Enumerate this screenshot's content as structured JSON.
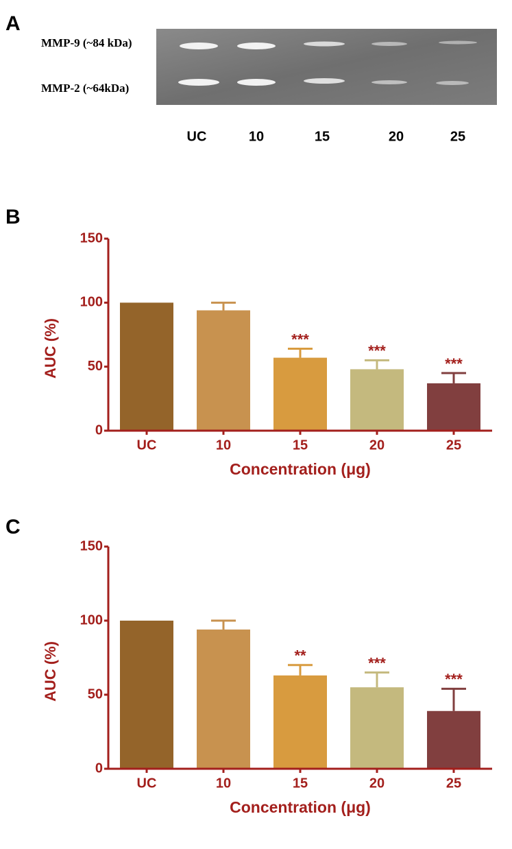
{
  "gel": {
    "panel": "A",
    "band_labels": [
      "MMP-9 (~84 kDa)",
      "MMP-2 (~64kDa)"
    ],
    "lanes": [
      "UC",
      "10",
      "15",
      "20",
      "25"
    ]
  },
  "chart_data": [
    {
      "type": "bar",
      "panel": "B",
      "y_label": "AUC (%)",
      "x_label": "Concentration (μg)",
      "categories": [
        "UC",
        "10",
        "15",
        "20",
        "25"
      ],
      "values": [
        100,
        94,
        57,
        48,
        37
      ],
      "errors": [
        null,
        6,
        7,
        7,
        8
      ],
      "annotations": [
        null,
        null,
        "***",
        "***",
        "***"
      ],
      "colors": [
        "#94642a",
        "#c8924f",
        "#d89b3f",
        "#c4b97e",
        "#813f3f"
      ],
      "axis_color": "#a31f1c",
      "ylim": [
        0,
        150
      ],
      "yticks": [
        0,
        50,
        100,
        150
      ],
      "grid": false
    },
    {
      "type": "bar",
      "panel": "C",
      "y_label": "AUC (%)",
      "x_label": "Concentration (μg)",
      "categories": [
        "UC",
        "10",
        "15",
        "20",
        "25"
      ],
      "values": [
        100,
        94,
        63,
        55,
        39
      ],
      "errors": [
        null,
        6,
        7,
        10,
        15
      ],
      "annotations": [
        null,
        null,
        "**",
        "***",
        "***"
      ],
      "colors": [
        "#94642a",
        "#c8924f",
        "#d89b3f",
        "#c4b97e",
        "#813f3f"
      ],
      "axis_color": "#a31f1c",
      "ylim": [
        0,
        150
      ],
      "yticks": [
        0,
        50,
        100,
        150
      ],
      "grid": false
    }
  ]
}
